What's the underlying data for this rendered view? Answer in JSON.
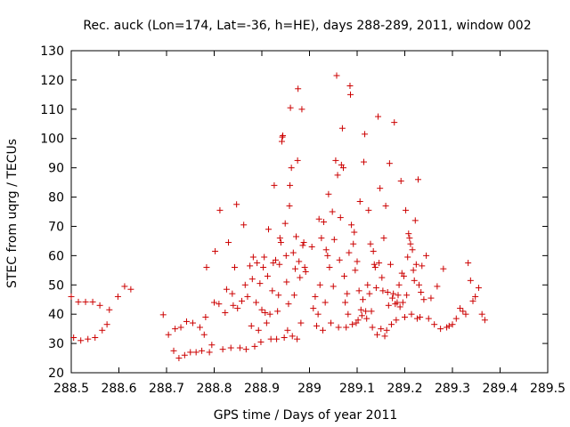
{
  "chart_data": {
    "type": "scatter",
    "title": "Rec. auck (Lon=174, Lat=-36, h=HE), days 288-289, 2011, window 002",
    "xlabel": "GPS time / Days of year 2011",
    "ylabel": "STEC from uqrg / TECUs",
    "xlim": [
      288.5,
      289.5
    ],
    "ylim": [
      20,
      130
    ],
    "x_ticks": [
      288.5,
      288.6,
      288.7,
      288.8,
      288.9,
      289.0,
      289.1,
      289.2,
      289.3,
      289.4,
      289.5
    ],
    "x_tick_labels": [
      "288.5",
      "288.6",
      "288.7",
      "288.8",
      "288.9",
      "289",
      "289.1",
      "289.2",
      "289.3",
      "289.4",
      "289.5"
    ],
    "y_ticks": [
      20,
      30,
      40,
      50,
      60,
      70,
      80,
      90,
      100,
      110,
      120,
      130
    ],
    "y_tick_labels": [
      "20",
      "30",
      "40",
      "50",
      "60",
      "70",
      "80",
      "90",
      "100",
      "110",
      "120",
      "130"
    ],
    "grid": false,
    "marker": "plus",
    "marker_color": "#cc0000",
    "series": [
      {
        "points": [
          [
            288.5,
            46.0
          ],
          [
            288.505,
            32.0
          ],
          [
            288.515,
            44.2
          ],
          [
            288.52,
            31.0
          ],
          [
            288.53,
            44.2
          ],
          [
            288.535,
            31.5
          ],
          [
            288.545,
            44.2
          ],
          [
            288.55,
            32.0
          ],
          [
            288.56,
            43.0
          ],
          [
            288.565,
            34.5
          ],
          [
            288.575,
            36.5
          ],
          [
            288.58,
            41.5
          ],
          [
            288.598,
            46.0
          ],
          [
            288.612,
            49.5
          ],
          [
            288.625,
            48.5
          ],
          [
            288.693,
            39.8
          ],
          [
            288.704,
            33.0
          ],
          [
            288.715,
            27.5
          ],
          [
            288.718,
            35.0
          ],
          [
            288.726,
            25.0
          ],
          [
            288.73,
            35.5
          ],
          [
            288.738,
            26.0
          ],
          [
            288.742,
            37.5
          ],
          [
            288.75,
            27.0
          ],
          [
            288.755,
            37.0
          ],
          [
            288.762,
            27.0
          ],
          [
            288.77,
            35.5
          ],
          [
            288.774,
            27.5
          ],
          [
            288.779,
            33.0
          ],
          [
            288.782,
            39.0
          ],
          [
            288.784,
            56.0
          ],
          [
            288.79,
            27.0
          ],
          [
            288.795,
            29.5
          ],
          [
            288.8,
            44.0
          ],
          [
            288.802,
            61.5
          ],
          [
            288.81,
            43.5
          ],
          [
            288.812,
            75.5
          ],
          [
            288.818,
            28.0
          ],
          [
            288.823,
            40.5
          ],
          [
            288.826,
            48.5
          ],
          [
            288.83,
            64.5
          ],
          [
            288.835,
            28.5
          ],
          [
            288.838,
            47.0
          ],
          [
            288.84,
            43.0
          ],
          [
            288.843,
            56.0
          ],
          [
            288.847,
            77.5
          ],
          [
            288.849,
            42.0
          ],
          [
            288.854,
            28.5
          ],
          [
            288.858,
            44.5
          ],
          [
            288.862,
            70.5
          ],
          [
            288.865,
            50.0
          ],
          [
            288.867,
            28.0
          ],
          [
            288.87,
            46.0
          ],
          [
            288.875,
            56.5
          ],
          [
            288.878,
            36.0
          ],
          [
            288.88,
            52.0
          ],
          [
            288.882,
            59.5
          ],
          [
            288.885,
            29.0
          ],
          [
            288.888,
            44.0
          ],
          [
            288.89,
            57.5
          ],
          [
            288.893,
            34.5
          ],
          [
            288.896,
            50.5
          ],
          [
            288.898,
            30.5
          ],
          [
            288.9,
            41.5
          ],
          [
            288.903,
            56.0
          ],
          [
            288.905,
            59.5
          ],
          [
            288.907,
            40.5
          ],
          [
            288.91,
            37.0
          ],
          [
            288.912,
            53.0
          ],
          [
            288.914,
            69.0
          ],
          [
            288.917,
            40.0
          ],
          [
            288.919,
            31.5
          ],
          [
            288.922,
            48.0
          ],
          [
            288.924,
            57.5
          ],
          [
            288.926,
            84.0
          ],
          [
            288.929,
            58.5
          ],
          [
            288.931,
            31.5
          ],
          [
            288.933,
            41.0
          ],
          [
            288.935,
            46.5
          ],
          [
            288.937,
            57.0
          ],
          [
            288.938,
            66.0
          ],
          [
            288.94,
            64.5
          ],
          [
            288.942,
            99.0
          ],
          [
            288.943,
            100.5
          ],
          [
            288.944,
            101.0
          ],
          [
            288.947,
            32.0
          ],
          [
            288.949,
            71.0
          ],
          [
            288.951,
            60.0
          ],
          [
            288.952,
            51.0
          ],
          [
            288.954,
            34.5
          ],
          [
            288.956,
            43.5
          ],
          [
            288.958,
            77.0
          ],
          [
            288.959,
            84.0
          ],
          [
            288.96,
            110.5
          ],
          [
            288.962,
            90.0
          ],
          [
            288.964,
            32.5
          ],
          [
            288.966,
            61.0
          ],
          [
            288.968,
            46.5
          ],
          [
            288.97,
            55.5
          ],
          [
            288.972,
            66.5
          ],
          [
            288.974,
            31.5
          ],
          [
            288.975,
            92.5
          ],
          [
            288.976,
            117.0
          ],
          [
            288.978,
            58.0
          ],
          [
            288.98,
            52.5
          ],
          [
            288.982,
            37.0
          ],
          [
            288.984,
            110.0
          ],
          [
            288.986,
            63.5
          ],
          [
            288.988,
            64.5
          ],
          [
            288.99,
            56.0
          ],
          [
            288.992,
            54.5
          ],
          [
            289.005,
            63.0
          ],
          [
            289.008,
            42.0
          ],
          [
            289.012,
            46.0
          ],
          [
            289.015,
            36.0
          ],
          [
            289.018,
            40.0
          ],
          [
            289.02,
            72.5
          ],
          [
            289.022,
            50.0
          ],
          [
            289.025,
            66.0
          ],
          [
            289.028,
            34.5
          ],
          [
            289.03,
            71.5
          ],
          [
            289.033,
            44.0
          ],
          [
            289.035,
            62.0
          ],
          [
            289.038,
            60.0
          ],
          [
            289.04,
            81.0
          ],
          [
            289.042,
            56.0
          ],
          [
            289.045,
            37.0
          ],
          [
            289.048,
            75.0
          ],
          [
            289.05,
            49.5
          ],
          [
            289.052,
            65.5
          ],
          [
            289.055,
            92.5
          ],
          [
            289.057,
            121.5
          ],
          [
            289.059,
            87.5
          ],
          [
            289.061,
            35.5
          ],
          [
            289.063,
            58.5
          ],
          [
            289.065,
            73.0
          ],
          [
            289.067,
            91.0
          ],
          [
            289.069,
            103.5
          ],
          [
            289.071,
            90.0
          ],
          [
            289.073,
            53.0
          ],
          [
            289.075,
            44.0
          ],
          [
            289.077,
            35.5
          ],
          [
            289.079,
            47.0
          ],
          [
            289.081,
            40.0
          ],
          [
            289.083,
            61.0
          ],
          [
            289.085,
            118.0
          ],
          [
            289.086,
            115.0
          ],
          [
            289.088,
            70.5
          ],
          [
            289.09,
            36.5
          ],
          [
            289.092,
            64.0
          ],
          [
            289.094,
            68.0
          ],
          [
            289.096,
            55.0
          ],
          [
            289.098,
            37.0
          ],
          [
            289.1,
            58.0
          ],
          [
            289.102,
            38.0
          ],
          [
            289.104,
            48.0
          ],
          [
            289.106,
            78.5
          ],
          [
            289.108,
            41.5
          ],
          [
            289.11,
            39.5
          ],
          [
            289.112,
            45.0
          ],
          [
            289.114,
            92.0
          ],
          [
            289.116,
            101.5
          ],
          [
            289.118,
            41.0
          ],
          [
            289.12,
            38.5
          ],
          [
            289.122,
            50.0
          ],
          [
            289.124,
            75.5
          ],
          [
            289.126,
            47.0
          ],
          [
            289.128,
            64.0
          ],
          [
            289.13,
            41.0
          ],
          [
            289.132,
            35.5
          ],
          [
            289.134,
            61.5
          ],
          [
            289.136,
            57.0
          ],
          [
            289.138,
            56.0
          ],
          [
            289.14,
            49.0
          ],
          [
            289.142,
            33.0
          ],
          [
            289.144,
            107.5
          ],
          [
            289.146,
            57.5
          ],
          [
            289.148,
            83.0
          ],
          [
            289.15,
            35.0
          ],
          [
            289.152,
            52.5
          ],
          [
            289.154,
            48.0
          ],
          [
            289.156,
            66.0
          ],
          [
            289.158,
            32.5
          ],
          [
            289.16,
            77.0
          ],
          [
            289.162,
            34.5
          ],
          [
            289.164,
            47.5
          ],
          [
            289.166,
            43.0
          ],
          [
            289.168,
            91.5
          ],
          [
            289.17,
            57.0
          ],
          [
            289.172,
            36.5
          ],
          [
            289.174,
            45.5
          ],
          [
            289.176,
            47.0
          ],
          [
            289.178,
            105.5
          ],
          [
            289.18,
            43.5
          ],
          [
            289.182,
            38.0
          ],
          [
            289.184,
            44.0
          ],
          [
            289.186,
            46.5
          ],
          [
            289.188,
            50.0
          ],
          [
            289.19,
            42.5
          ],
          [
            289.192,
            85.5
          ],
          [
            289.194,
            54.0
          ],
          [
            289.196,
            44.0
          ],
          [
            289.198,
            53.0
          ],
          [
            289.2,
            39.0
          ],
          [
            289.202,
            75.5
          ],
          [
            289.204,
            46.5
          ],
          [
            289.206,
            59.5
          ],
          [
            289.208,
            67.5
          ],
          [
            289.21,
            66.0
          ],
          [
            289.212,
            64.0
          ],
          [
            289.214,
            40.0
          ],
          [
            289.216,
            62.0
          ],
          [
            289.218,
            55.0
          ],
          [
            289.22,
            51.5
          ],
          [
            289.222,
            72.0
          ],
          [
            289.224,
            57.0
          ],
          [
            289.226,
            38.5
          ],
          [
            289.228,
            86.0
          ],
          [
            289.23,
            50.0
          ],
          [
            289.232,
            39.0
          ],
          [
            289.234,
            47.5
          ],
          [
            289.236,
            56.5
          ],
          [
            289.24,
            45.0
          ],
          [
            289.245,
            60.0
          ],
          [
            289.25,
            38.5
          ],
          [
            289.255,
            45.5
          ],
          [
            289.262,
            36.5
          ],
          [
            289.268,
            49.5
          ],
          [
            289.275,
            35.0
          ],
          [
            289.281,
            55.5
          ],
          [
            289.288,
            35.5
          ],
          [
            289.293,
            36.0
          ],
          [
            289.3,
            36.5
          ],
          [
            289.308,
            38.5
          ],
          [
            289.316,
            42.0
          ],
          [
            289.322,
            41.0
          ],
          [
            289.328,
            40.0
          ],
          [
            289.333,
            57.5
          ],
          [
            289.338,
            51.5
          ],
          [
            289.343,
            44.5
          ],
          [
            289.348,
            46.0
          ],
          [
            289.355,
            49.0
          ],
          [
            289.362,
            40.0
          ],
          [
            289.368,
            38.0
          ]
        ]
      }
    ]
  }
}
